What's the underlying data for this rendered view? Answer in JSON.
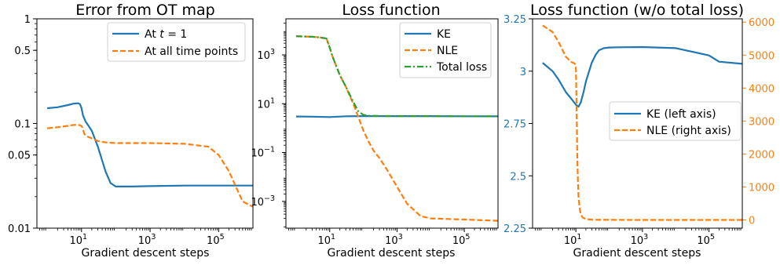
{
  "colors": {
    "blue": "#1f77b4",
    "orange": "#ff7f0e",
    "green": "#2ca02c"
  },
  "chart_data": [
    {
      "type": "line",
      "title": "Error from OT map",
      "xlabel": "Gradient descent steps",
      "ylabel": "",
      "xscale": "log",
      "yscale": "log",
      "xlim": [
        0.5,
        1000000
      ],
      "ylim": [
        0.01,
        1
      ],
      "xticks": [
        {
          "v": 10,
          "b": "10",
          "e": "1"
        },
        {
          "v": 1000,
          "b": "10",
          "e": "3"
        },
        {
          "v": 100000,
          "b": "10",
          "e": "5"
        }
      ],
      "yticks": [
        {
          "v": 1,
          "label": "1"
        },
        {
          "v": 0.5,
          "label": "0.5"
        },
        {
          "v": 0.1,
          "label": "0.1"
        },
        {
          "v": 0.05,
          "label": "0.05"
        },
        {
          "v": 0.01,
          "label": "0.01"
        }
      ],
      "legend": {
        "position": "upper right"
      },
      "series": [
        {
          "name": "At t = 1",
          "color": "#1f77b4",
          "style": "solid",
          "x": [
            1,
            2,
            4,
            6,
            8,
            9,
            10,
            11,
            13,
            16,
            20,
            30,
            50,
            70,
            100,
            150,
            300,
            1000,
            10000,
            100000,
            1000000
          ],
          "y": [
            0.14,
            0.143,
            0.15,
            0.155,
            0.156,
            0.153,
            0.14,
            0.12,
            0.105,
            0.095,
            0.085,
            0.06,
            0.035,
            0.027,
            0.025,
            0.025,
            0.025,
            0.0252,
            0.0255,
            0.0255,
            0.0255
          ]
        },
        {
          "name": "At all time points",
          "color": "#ff7f0e",
          "style": "dashed",
          "x": [
            1,
            2,
            4,
            6,
            8,
            10,
            11,
            12,
            13,
            15,
            20,
            30,
            50,
            100,
            1000,
            10000,
            50000,
            100000,
            200000,
            300000,
            500000,
            1000000
          ],
          "y": [
            0.09,
            0.092,
            0.095,
            0.097,
            0.097,
            0.095,
            0.088,
            0.08,
            0.077,
            0.075,
            0.072,
            0.068,
            0.066,
            0.065,
            0.065,
            0.064,
            0.06,
            0.05,
            0.035,
            0.026,
            0.018,
            0.016
          ]
        }
      ]
    },
    {
      "type": "line",
      "title": "Loss function",
      "xlabel": "Gradient descent steps",
      "ylabel": "",
      "xscale": "log",
      "yscale": "log",
      "xlim": [
        0.5,
        1000000
      ],
      "ylim": [
        8e-05,
        30000
      ],
      "xticks": [
        {
          "v": 10,
          "b": "10",
          "e": "1"
        },
        {
          "v": 1000,
          "b": "10",
          "e": "3"
        },
        {
          "v": 100000,
          "b": "10",
          "e": "5"
        }
      ],
      "yticks": [
        {
          "v": 1000,
          "b": "10",
          "e": "3"
        },
        {
          "v": 10,
          "b": "10",
          "e": "1"
        },
        {
          "v": 0.1,
          "b": "10",
          "e": "−1"
        },
        {
          "v": 0.001,
          "b": "10",
          "e": "−3"
        }
      ],
      "legend": {
        "position": "upper right"
      },
      "series": [
        {
          "name": "KE",
          "color": "#1f77b4",
          "style": "solid",
          "x": [
            1,
            3,
            10,
            30,
            100,
            1000,
            10000,
            100000,
            1000000
          ],
          "y": [
            3,
            2.95,
            2.85,
            3.05,
            3.1,
            3.1,
            3.1,
            3.05,
            3.03
          ]
        },
        {
          "name": "NLE",
          "color": "#ff7f0e",
          "style": "dashed",
          "x": [
            1,
            3,
            5,
            8,
            10,
            12,
            15,
            20,
            30,
            50,
            70,
            100,
            150,
            200,
            300,
            500,
            1000,
            2000,
            5000,
            10000,
            100000,
            1000000
          ],
          "y": [
            5800,
            5500,
            5200,
            4700,
            2000,
            900,
            400,
            150,
            50,
            10,
            3,
            0.8,
            0.25,
            0.12,
            0.06,
            0.02,
            0.004,
            0.0008,
            0.00025,
            0.0002,
            0.00018,
            0.00016
          ]
        },
        {
          "name": "Total loss",
          "color": "#2ca02c",
          "style": "dashdot",
          "x": [
            1,
            3,
            5,
            8,
            10,
            12,
            15,
            20,
            30,
            50,
            70,
            100,
            150,
            300,
            1000,
            10000,
            100000,
            1000000
          ],
          "y": [
            5800,
            5500,
            5200,
            4700,
            2000,
            900,
            400,
            150,
            50,
            12,
            5,
            3.5,
            3.2,
            3.15,
            3.1,
            3.1,
            3.05,
            3.03
          ]
        }
      ]
    },
    {
      "type": "line",
      "title": "Loss function (w/o total loss)",
      "xlabel": "Gradient descent steps",
      "ylabel": "",
      "xscale": "log",
      "xlim": [
        0.5,
        1000000
      ],
      "ylim_left": [
        2.25,
        3.25
      ],
      "ylim_right": [
        -250,
        6100
      ],
      "xticks": [
        {
          "v": 10,
          "b": "10",
          "e": "1"
        },
        {
          "v": 1000,
          "b": "10",
          "e": "3"
        },
        {
          "v": 100000,
          "b": "10",
          "e": "5"
        }
      ],
      "yticks_left": [
        {
          "v": 3.25,
          "label": "3.25"
        },
        {
          "v": 3,
          "label": "3"
        },
        {
          "v": 2.75,
          "label": "2.75"
        },
        {
          "v": 2.5,
          "label": "2.5"
        },
        {
          "v": 2.25,
          "label": "2.25"
        }
      ],
      "yticks_right": [
        {
          "v": 6000,
          "label": "6000"
        },
        {
          "v": 5000,
          "label": "5000"
        },
        {
          "v": 4000,
          "label": "4000"
        },
        {
          "v": 3000,
          "label": "3000"
        },
        {
          "v": 2000,
          "label": "2000"
        },
        {
          "v": 1000,
          "label": "1000"
        },
        {
          "v": 0,
          "label": "0"
        }
      ],
      "legend": {
        "position": "center right"
      },
      "series": [
        {
          "name": "KE (left axis)",
          "axis": "left",
          "color": "#1f77b4",
          "style": "solid",
          "x": [
            1,
            2,
            3,
            5,
            8,
            10,
            12,
            14,
            17,
            20,
            25,
            30,
            40,
            50,
            70,
            100,
            200,
            1000,
            10000,
            100000,
            200000,
            1000000
          ],
          "y": [
            3.04,
            3.0,
            2.96,
            2.9,
            2.86,
            2.84,
            2.83,
            2.85,
            2.9,
            2.95,
            3.0,
            3.04,
            3.08,
            3.1,
            3.11,
            3.113,
            3.114,
            3.115,
            3.11,
            3.075,
            3.045,
            3.035
          ]
        },
        {
          "name": "NLE (right axis)",
          "axis": "right",
          "color": "#ff7f0e",
          "style": "dashed",
          "x": [
            1,
            2,
            3,
            5,
            7,
            9,
            10,
            10.5,
            11,
            11.5,
            12,
            13,
            14,
            16,
            20,
            30,
            50,
            100,
            1000,
            1000000
          ],
          "y": [
            5900,
            5700,
            5400,
            4950,
            4800,
            4750,
            4700,
            3500,
            2000,
            1200,
            700,
            350,
            180,
            70,
            25,
            8,
            3,
            1,
            0,
            0
          ]
        }
      ]
    }
  ]
}
